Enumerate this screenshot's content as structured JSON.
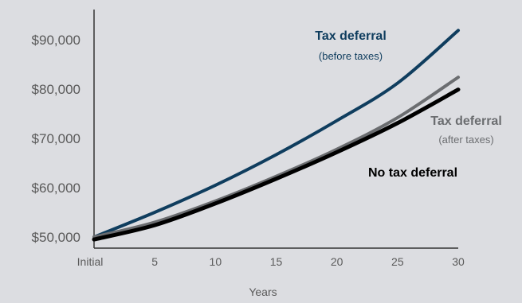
{
  "chart_data": {
    "type": "line",
    "title": "",
    "xlabel": "Years",
    "ylabel": "",
    "x_categories": [
      "Initial",
      "5",
      "10",
      "15",
      "20",
      "25",
      "30"
    ],
    "yticks": [
      "$50,000",
      "$60,000",
      "$70,000",
      "$80,000",
      "$90,000"
    ],
    "ylim": [
      50000,
      90000
    ],
    "grid": false,
    "series": [
      {
        "name": "Tax deferral",
        "subtitle": "(before taxes)",
        "color": "#0f3d5e",
        "values": [
          50000,
          55000,
          60500,
          66700,
          73600,
          81200,
          91900
        ]
      },
      {
        "name": "Tax deferral",
        "subtitle": "(after taxes)",
        "color": "#6b6d70",
        "values": [
          50000,
          53000,
          57300,
          62300,
          67800,
          74200,
          82400
        ]
      },
      {
        "name": "No tax deferral",
        "subtitle": "",
        "color": "#000000",
        "values": [
          49500,
          52400,
          56800,
          61800,
          67200,
          73100,
          79900
        ]
      }
    ]
  }
}
